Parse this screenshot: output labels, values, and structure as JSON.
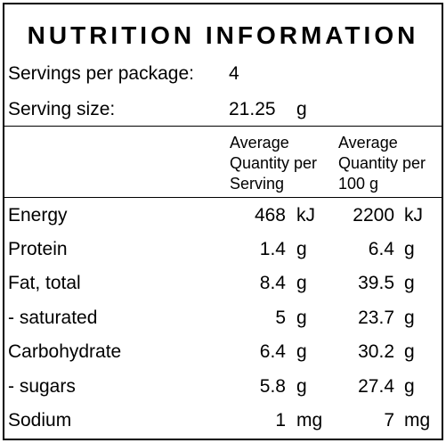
{
  "title": "NUTRITION INFORMATION",
  "servings": {
    "label": "Servings per package:",
    "value": "4"
  },
  "serving_size": {
    "label": "Serving size:",
    "value": "21.25",
    "unit": "g"
  },
  "columns": {
    "per_serving": [
      "Average",
      "Quantity per",
      "Serving"
    ],
    "per_100g": [
      "Average",
      "Quantity per",
      "100 g"
    ]
  },
  "nutrients": [
    {
      "name": "Energy",
      "per_serving": "468",
      "per_serving_unit": "kJ",
      "per_100g": "2200",
      "per_100g_unit": "kJ"
    },
    {
      "name": "Protein",
      "per_serving": "1.4",
      "per_serving_unit": "g",
      "per_100g": "6.4",
      "per_100g_unit": "g"
    },
    {
      "name": "Fat, total",
      "per_serving": "8.4",
      "per_serving_unit": "g",
      "per_100g": "39.5",
      "per_100g_unit": "g"
    },
    {
      "name": "- saturated",
      "per_serving": "5",
      "per_serving_unit": "g",
      "per_100g": "23.7",
      "per_100g_unit": "g"
    },
    {
      "name": "Carbohydrate",
      "per_serving": "6.4",
      "per_serving_unit": "g",
      "per_100g": "30.2",
      "per_100g_unit": "g"
    },
    {
      "name": "- sugars",
      "per_serving": "5.8",
      "per_serving_unit": "g",
      "per_100g": "27.4",
      "per_100g_unit": "g"
    },
    {
      "name": "Sodium",
      "per_serving": "1",
      "per_serving_unit": "mg",
      "per_100g": "7",
      "per_100g_unit": "mg"
    }
  ]
}
